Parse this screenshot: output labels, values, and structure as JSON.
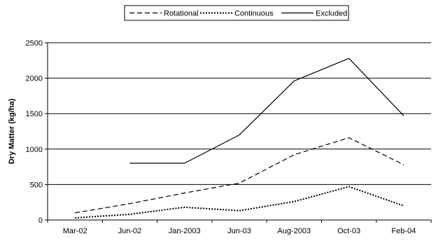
{
  "chart_data": {
    "type": "line",
    "title": "",
    "xlabel": "",
    "ylabel": "Dry Matter (kg/ha)",
    "categories": [
      "Mar-02",
      "Jun-02",
      "Jan-2003",
      "Jun-03",
      "Aug-2003",
      "Oct-03",
      "Feb-04"
    ],
    "ylim": [
      0,
      2500
    ],
    "yticks": [
      0,
      500,
      1000,
      1500,
      2000,
      2500
    ],
    "grid": true,
    "legend_position": "top-center",
    "series": [
      {
        "name": "Rotational",
        "style": "dashed",
        "color": "#000000",
        "values": [
          100,
          230,
          380,
          520,
          920,
          1160,
          780
        ]
      },
      {
        "name": "Continuous",
        "style": "dotted",
        "color": "#000000",
        "values": [
          30,
          80,
          180,
          130,
          260,
          470,
          200
        ]
      },
      {
        "name": "Excluded",
        "style": "solid",
        "color": "#000000",
        "values": [
          null,
          800,
          800,
          1200,
          1960,
          2280,
          1470
        ]
      }
    ]
  }
}
